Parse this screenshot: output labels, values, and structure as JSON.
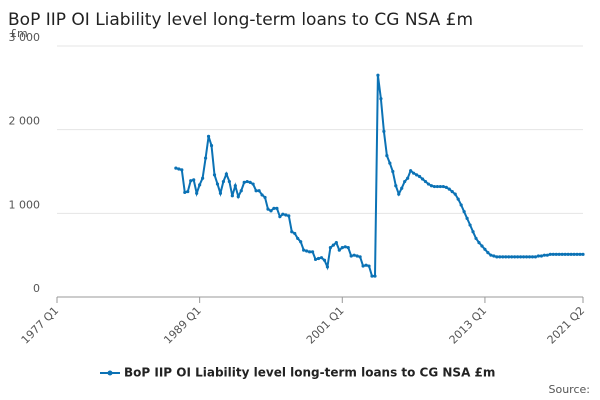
{
  "chart_data": {
    "type": "line",
    "title": "BoP IIP OI Liability level long-term loans to CG NSA £m",
    "y_label": "£m",
    "source": "Source:",
    "xlim": [
      "1977 Q1",
      "2021 Q2"
    ],
    "xticks": [
      "1977 Q1",
      "1989 Q1",
      "2001 Q1",
      "2013 Q1",
      "2021 Q2"
    ],
    "ylim": [
      0,
      3000
    ],
    "yticks": [
      0,
      {
        "value": 1000,
        "label": "1 000"
      },
      {
        "value": 2000,
        "label": "2 000"
      },
      {
        "value": 3000,
        "label": "3 000"
      }
    ],
    "grid": true,
    "x": [
      "1987 Q1",
      "1987 Q2",
      "1987 Q3",
      "1987 Q4",
      "1988 Q1",
      "1988 Q2",
      "1988 Q3",
      "1988 Q4",
      "1989 Q1",
      "1989 Q2",
      "1989 Q3",
      "1989 Q4",
      "1990 Q1",
      "1990 Q2",
      "1990 Q3",
      "1990 Q4",
      "1991 Q1",
      "1991 Q2",
      "1991 Q3",
      "1991 Q4",
      "1992 Q1",
      "1992 Q2",
      "1992 Q3",
      "1992 Q4",
      "1993 Q1",
      "1993 Q2",
      "1993 Q3",
      "1993 Q4",
      "1994 Q1",
      "1994 Q2",
      "1994 Q3",
      "1994 Q4",
      "1995 Q1",
      "1995 Q2",
      "1995 Q3",
      "1995 Q4",
      "1996 Q1",
      "1996 Q2",
      "1996 Q3",
      "1996 Q4",
      "1997 Q1",
      "1997 Q2",
      "1997 Q3",
      "1997 Q4",
      "1998 Q1",
      "1998 Q2",
      "1998 Q3",
      "1998 Q4",
      "1999 Q1",
      "1999 Q2",
      "1999 Q3",
      "1999 Q4",
      "2000 Q1",
      "2000 Q2",
      "2000 Q3",
      "2000 Q4",
      "2001 Q1",
      "2001 Q2",
      "2001 Q3",
      "2001 Q4",
      "2002 Q1",
      "2002 Q2",
      "2002 Q3",
      "2002 Q4",
      "2003 Q1",
      "2003 Q2",
      "2003 Q3",
      "2003 Q4",
      "2004 Q1",
      "2004 Q2",
      "2004 Q3",
      "2004 Q4",
      "2005 Q1",
      "2005 Q2",
      "2005 Q3",
      "2005 Q4",
      "2006 Q1",
      "2006 Q2",
      "2006 Q3",
      "2006 Q4",
      "2007 Q1",
      "2007 Q2",
      "2007 Q3",
      "2007 Q4",
      "2008 Q1",
      "2008 Q2",
      "2008 Q3",
      "2008 Q4",
      "2009 Q1",
      "2009 Q2",
      "2009 Q3",
      "2009 Q4",
      "2010 Q1",
      "2010 Q2",
      "2010 Q3",
      "2010 Q4",
      "2011 Q1",
      "2011 Q2",
      "2011 Q3",
      "2011 Q4",
      "2012 Q1",
      "2012 Q2",
      "2012 Q3",
      "2012 Q4",
      "2013 Q1",
      "2013 Q2",
      "2013 Q3",
      "2013 Q4",
      "2014 Q1",
      "2014 Q2",
      "2014 Q3",
      "2014 Q4",
      "2015 Q1",
      "2015 Q2",
      "2015 Q3",
      "2015 Q4",
      "2016 Q1",
      "2016 Q2",
      "2016 Q3",
      "2016 Q4",
      "2017 Q1",
      "2017 Q2",
      "2017 Q3",
      "2017 Q4",
      "2018 Q1",
      "2018 Q2",
      "2018 Q3",
      "2018 Q4",
      "2019 Q1",
      "2019 Q2",
      "2019 Q3",
      "2019 Q4",
      "2020 Q1",
      "2020 Q2",
      "2020 Q3",
      "2020 Q4",
      "2021 Q1",
      "2021 Q2"
    ],
    "series": [
      {
        "name": "BoP IIP OI Liability level long-term loans to CG NSA £m",
        "color": "#0b72b5",
        "values": [
          1540,
          1530,
          1520,
          1250,
          1260,
          1390,
          1400,
          1240,
          1340,
          1420,
          1660,
          1920,
          1810,
          1460,
          1350,
          1240,
          1380,
          1470,
          1380,
          1210,
          1330,
          1200,
          1270,
          1370,
          1380,
          1370,
          1350,
          1270,
          1270,
          1220,
          1190,
          1050,
          1030,
          1060,
          1060,
          960,
          990,
          980,
          970,
          780,
          760,
          700,
          660,
          560,
          550,
          540,
          540,
          450,
          460,
          470,
          440,
          360,
          590,
          620,
          650,
          560,
          590,
          600,
          590,
          490,
          500,
          490,
          480,
          370,
          380,
          370,
          250,
          250,
          2650,
          2370,
          1980,
          1690,
          1600,
          1500,
          1330,
          1230,
          1300,
          1380,
          1420,
          1510,
          1480,
          1460,
          1440,
          1410,
          1380,
          1350,
          1330,
          1320,
          1320,
          1320,
          1320,
          1310,
          1290,
          1260,
          1230,
          1170,
          1100,
          1020,
          940,
          860,
          780,
          700,
          650,
          610,
          570,
          530,
          500,
          490,
          480,
          480,
          480,
          480,
          480,
          480,
          480,
          480,
          480,
          480,
          480,
          480,
          480,
          480,
          490,
          490,
          500,
          500,
          510,
          510,
          510,
          510,
          510,
          510,
          510,
          510,
          510,
          510,
          510,
          510
        ]
      }
    ]
  }
}
